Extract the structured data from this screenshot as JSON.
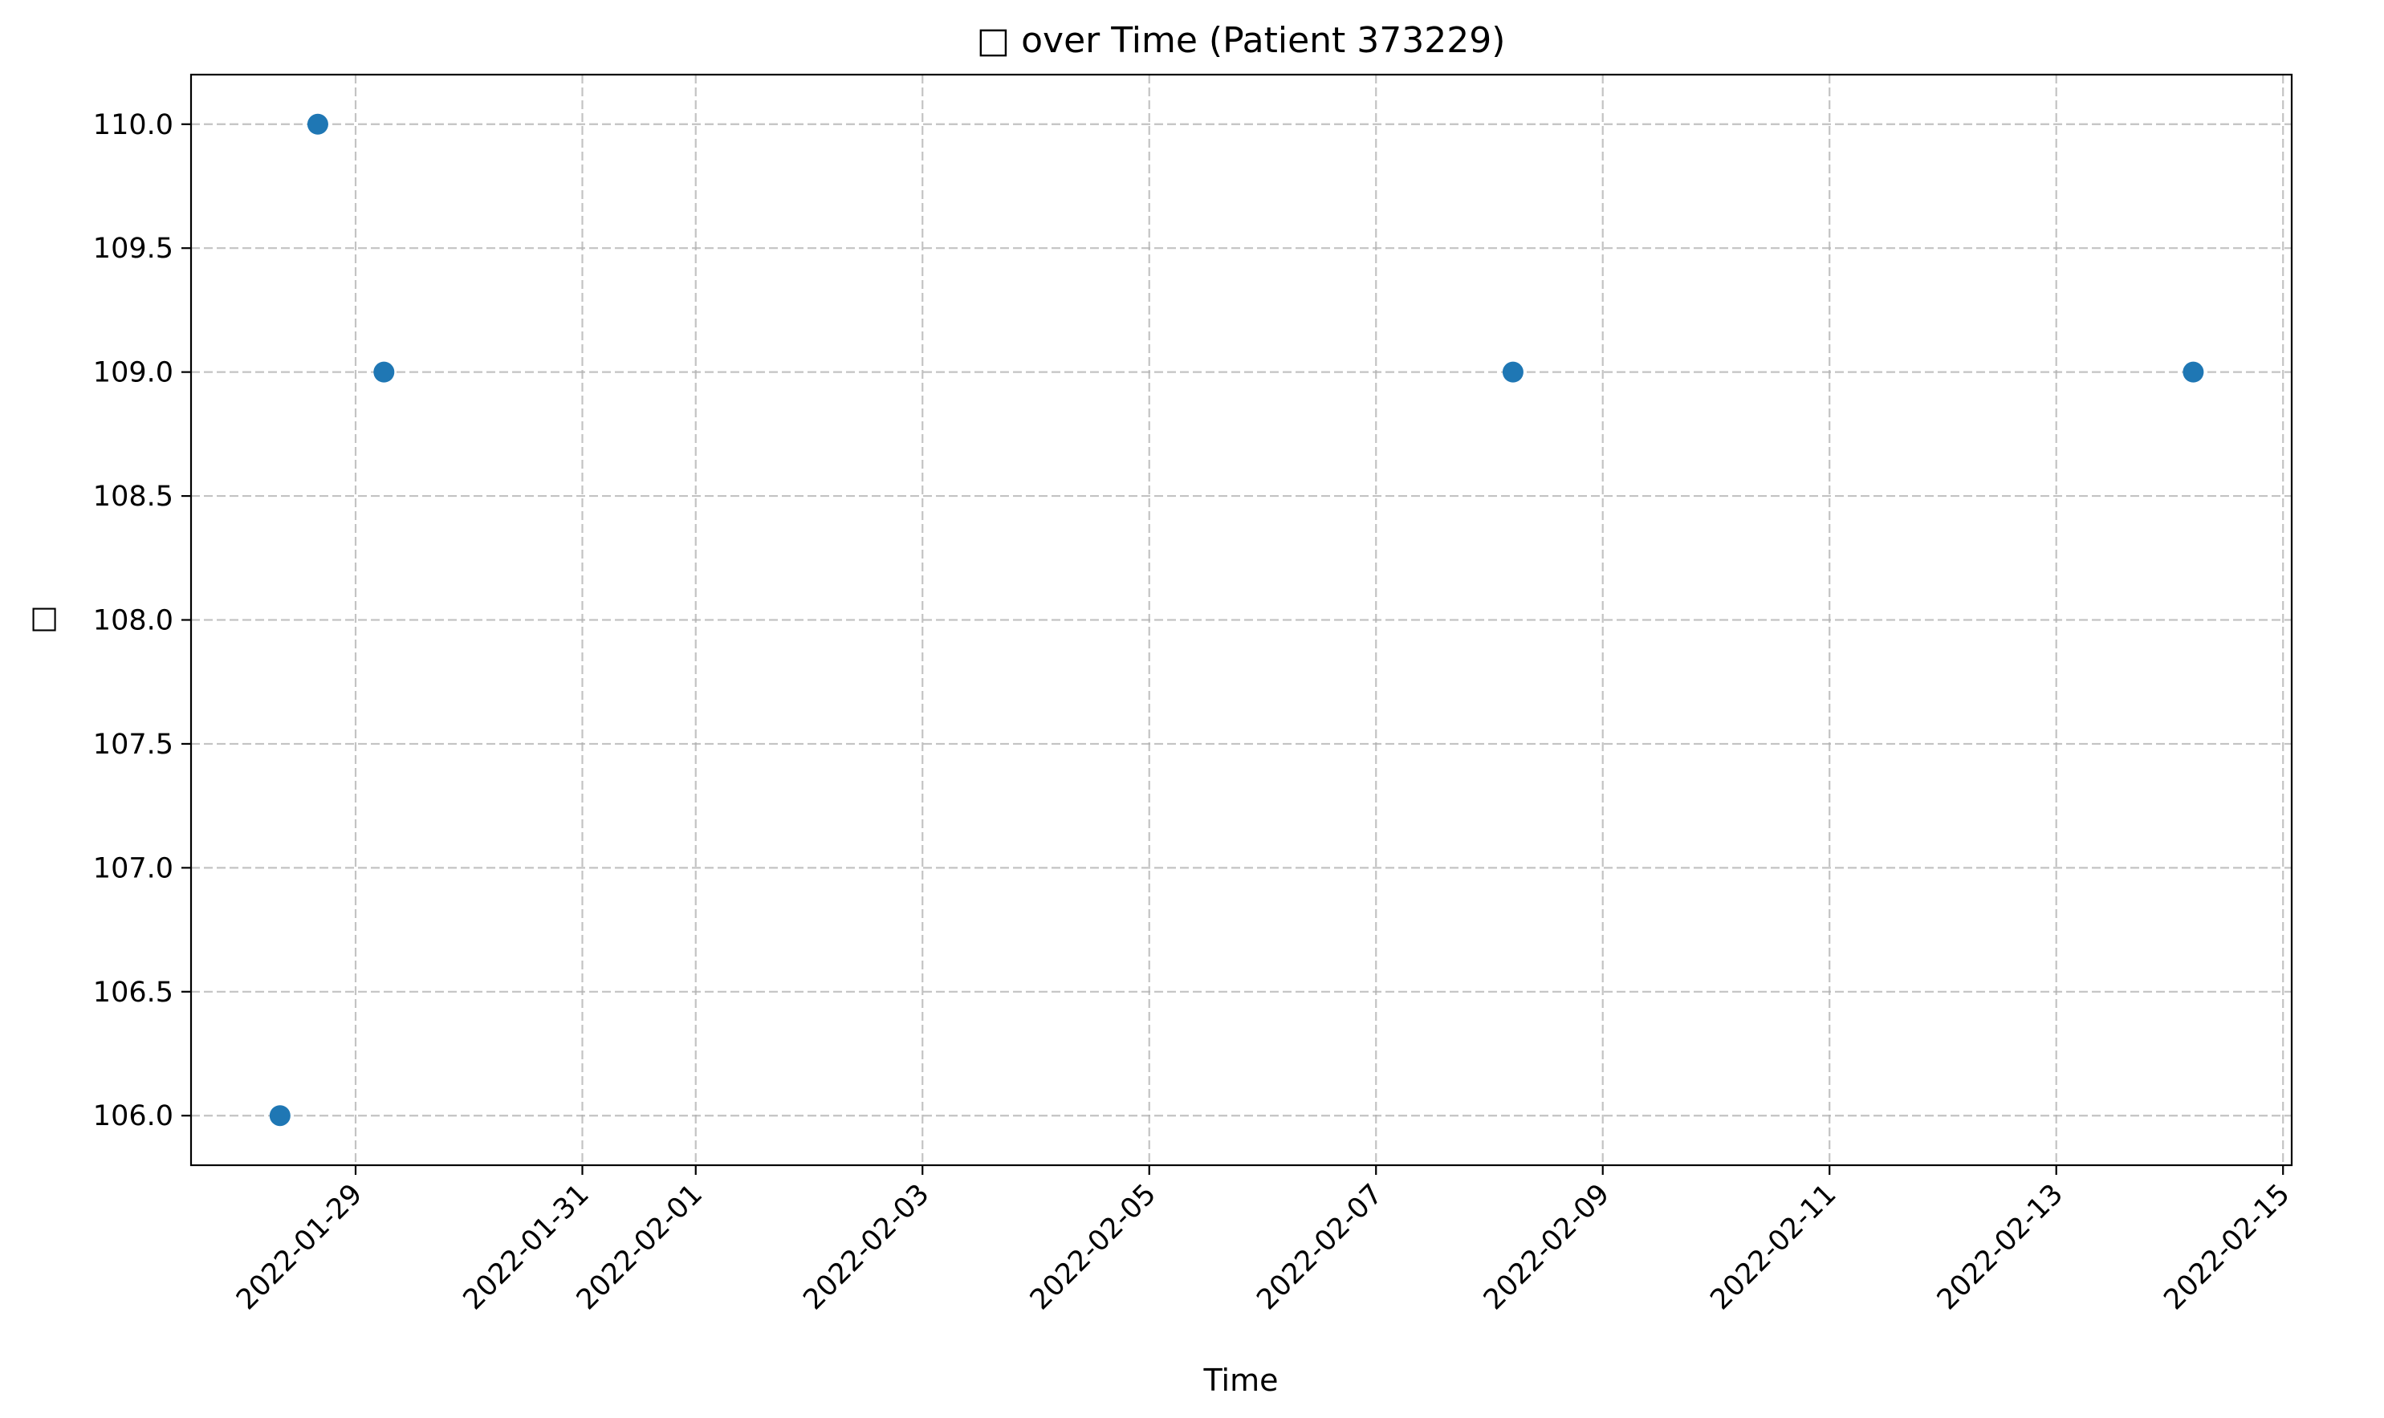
{
  "chart_data": {
    "type": "scatter",
    "title": "□ over Time (Patient 373229)",
    "xlabel": "Time",
    "ylabel": "□",
    "grid": true,
    "marker_color": "#1f77b4",
    "xlim": [
      "2022-01-27T13:10",
      "2022-02-15T01:50"
    ],
    "ylim": [
      105.8,
      110.2
    ],
    "x_ticks": [
      "2022-01-29",
      "2022-01-31",
      "2022-02-01",
      "2022-02-03",
      "2022-02-05",
      "2022-02-07",
      "2022-02-09",
      "2022-02-11",
      "2022-02-13",
      "2022-02-15"
    ],
    "y_ticks": [
      "106.0",
      "106.5",
      "107.0",
      "107.5",
      "108.0",
      "108.5",
      "109.0",
      "109.5",
      "110.0"
    ],
    "series": [
      {
        "points": [
          {
            "x": "2022-01-28T08:00",
            "y": 106.0
          },
          {
            "x": "2022-01-28T16:00",
            "y": 110.0
          },
          {
            "x": "2022-01-29T06:00",
            "y": 109.0
          },
          {
            "x": "2022-02-08T05:00",
            "y": 109.0
          },
          {
            "x": "2022-02-14T05:00",
            "y": 109.0
          }
        ]
      }
    ]
  }
}
